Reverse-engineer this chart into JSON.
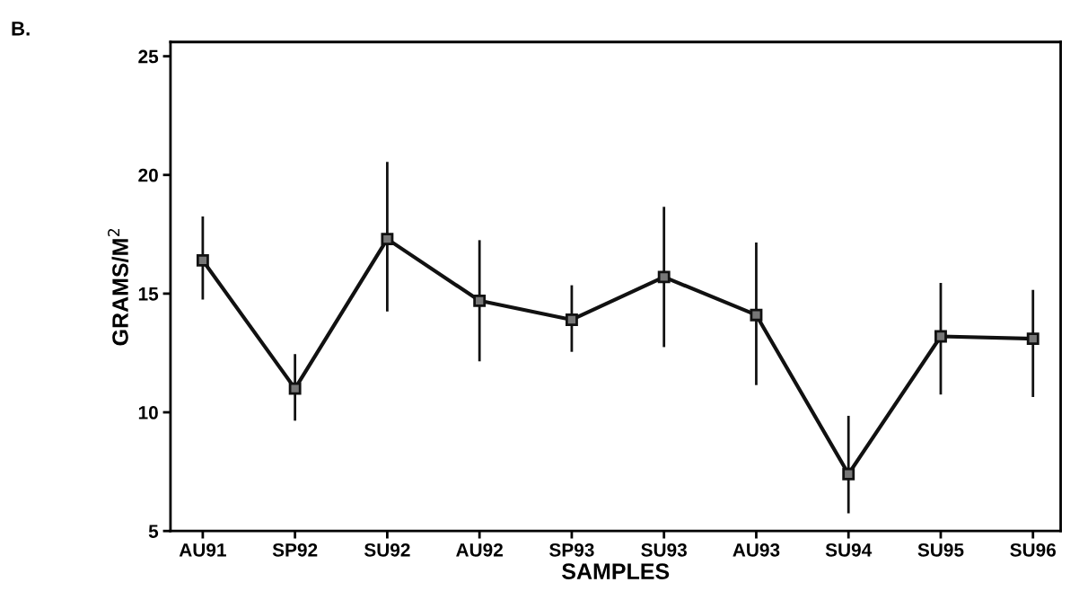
{
  "chart_data": {
    "type": "line",
    "title": "B.",
    "xlabel": "SAMPLES",
    "ylabel": "GRAMS/M$^{2}$",
    "categories": [
      "AU91",
      "SP92",
      "SU92",
      "AU92",
      "SP93",
      "SU93",
      "AU93",
      "SU94",
      "SU95",
      "SU96"
    ],
    "series": [
      {
        "color": "#111111",
        "values": [
          16.4,
          11.0,
          17.3,
          14.7,
          13.9,
          15.7,
          14.1,
          7.4,
          13.2,
          13.1
        ],
        "errors": [
          [
            14.8,
            18.2
          ],
          [
            9.7,
            12.4
          ],
          [
            14.3,
            20.5
          ],
          [
            12.2,
            17.2
          ],
          [
            12.6,
            15.3
          ],
          [
            12.8,
            18.6
          ],
          [
            11.2,
            17.1
          ],
          [
            5.8,
            9.8
          ],
          [
            10.8,
            15.4
          ],
          [
            10.7,
            15.1
          ]
        ]
      }
    ],
    "ylim": [
      5,
      25.6
    ],
    "yticks": [
      5,
      10,
      15,
      20,
      25
    ],
    "marker": "square",
    "line_style": "solid",
    "grid": false,
    "legend": false
  }
}
